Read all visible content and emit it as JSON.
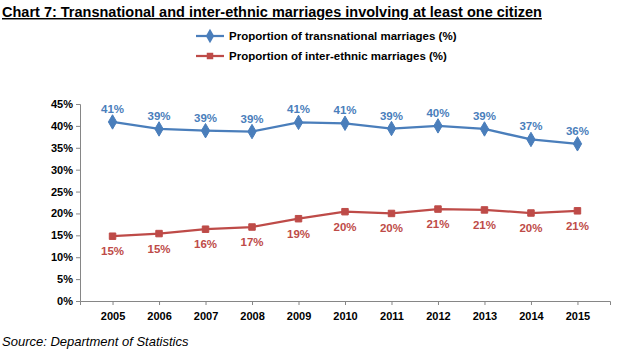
{
  "chart_data": {
    "type": "line",
    "title": "Chart 7: Transnational and inter-ethnic marriages involving at least one citizen",
    "source": "Source: Department of Statistics",
    "categories": [
      "2005",
      "2006",
      "2007",
      "2008",
      "2009",
      "2010",
      "2011",
      "2012",
      "2013",
      "2014",
      "2015"
    ],
    "series": [
      {
        "name": "Proportion of transnational marriages (%)",
        "color": "#4a7ebb",
        "marker": "diamond",
        "line_style": "solid",
        "values": [
          40.9,
          39.3,
          38.9,
          38.7,
          40.8,
          40.6,
          39.4,
          40.0,
          39.3,
          36.9,
          35.9
        ],
        "value_labels": [
          "41%",
          "39%",
          "39%",
          "39%",
          "41%",
          "41%",
          "39%",
          "40%",
          "39%",
          "37%",
          "36%"
        ]
      },
      {
        "name": "Proportion of inter-ethnic marriages (%)",
        "color": "#be4b48",
        "marker": "square",
        "line_style": "solid",
        "values": [
          14.8,
          15.4,
          16.4,
          16.9,
          18.8,
          20.4,
          20.0,
          21.0,
          20.8,
          20.1,
          20.6
        ],
        "value_labels": [
          "15%",
          "15%",
          "16%",
          "17%",
          "19%",
          "20%",
          "20%",
          "21%",
          "21%",
          "20%",
          "21%"
        ]
      }
    ],
    "ylim": [
      0,
      45
    ],
    "yticks": [
      {
        "value": 0,
        "label": "0%"
      },
      {
        "value": 5,
        "label": "5%"
      },
      {
        "value": 10,
        "label": "10%"
      },
      {
        "value": 15,
        "label": "15%"
      },
      {
        "value": 20,
        "label": "20%"
      },
      {
        "value": 25,
        "label": "25%"
      },
      {
        "value": 30,
        "label": "30%"
      },
      {
        "value": 35,
        "label": "35%"
      },
      {
        "value": 40,
        "label": "40%"
      },
      {
        "value": 45,
        "label": "45%"
      }
    ],
    "grid": false,
    "legend": "top",
    "data_labels": true
  }
}
